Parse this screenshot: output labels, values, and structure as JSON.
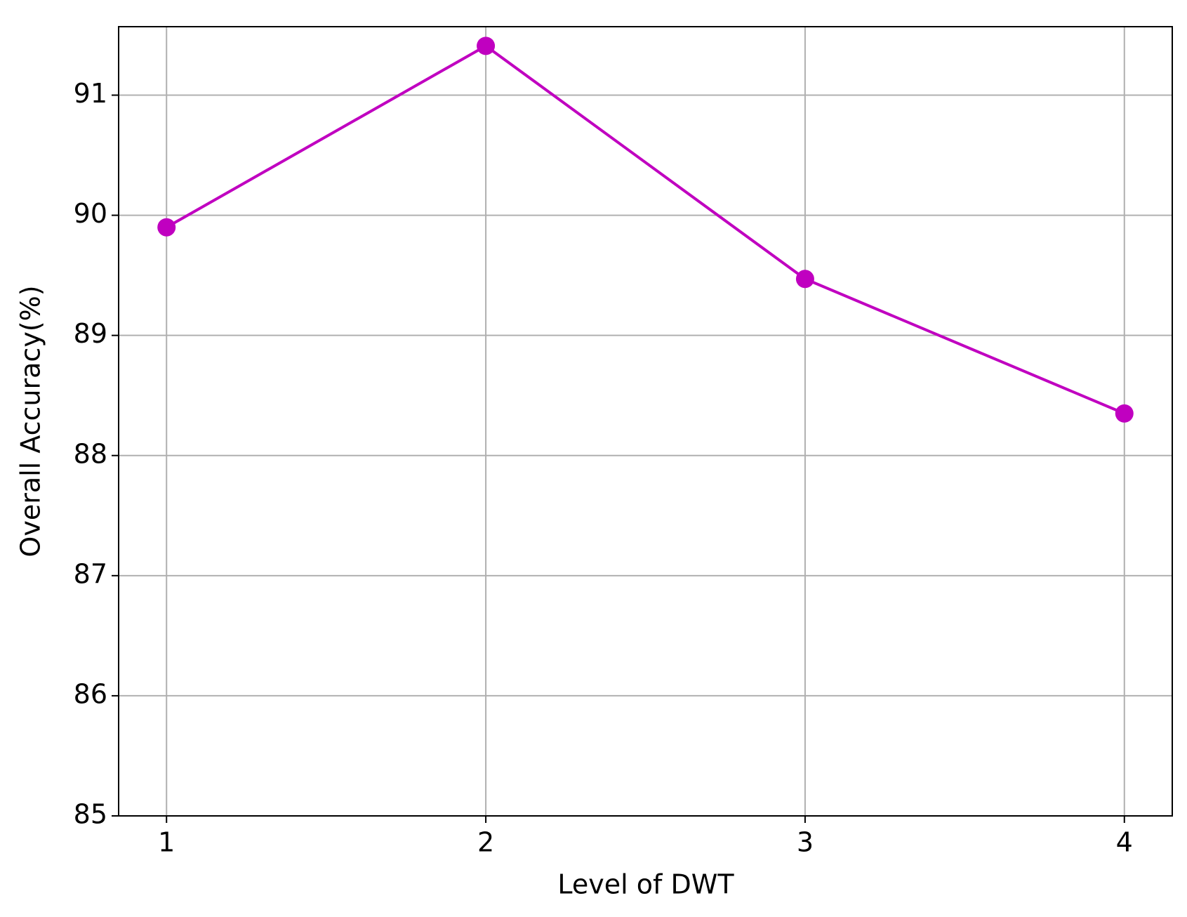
{
  "chart_data": {
    "type": "line",
    "x_label": "Level of DWT",
    "y_label": "Overall Accuracy(%)",
    "x": [
      1,
      2,
      3,
      4
    ],
    "series": [
      {
        "color": "#c000c0",
        "values": [
          89.9,
          91.41,
          89.47,
          88.35
        ]
      }
    ],
    "xlim": [
      0.85,
      4.15
    ],
    "xticks": [
      1,
      2,
      3,
      4
    ],
    "ylim": [
      85,
      91.57
    ],
    "yticks": [
      85,
      86,
      87,
      88,
      89,
      90,
      91
    ],
    "grid": true,
    "marker": "circle"
  }
}
